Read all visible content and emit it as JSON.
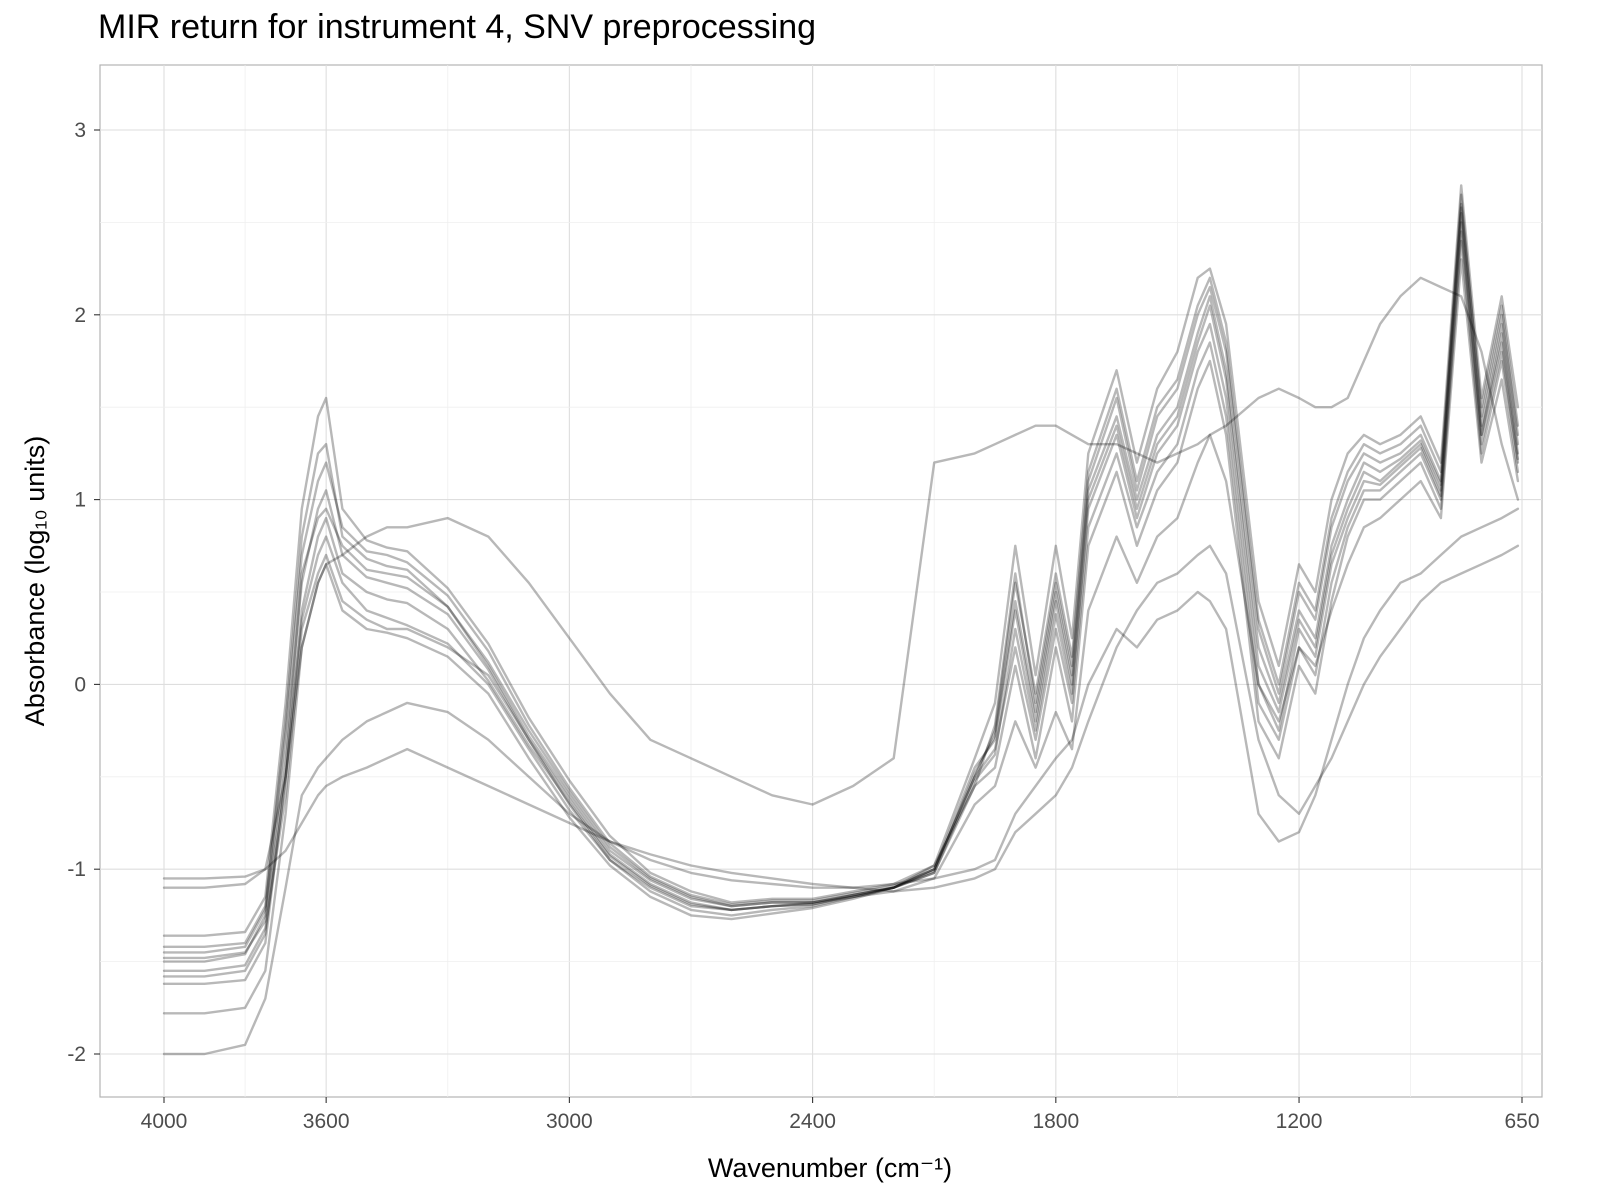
{
  "chart_data": {
    "type": "line",
    "title": "MIR return for instrument 4, SNV preprocessing",
    "xlabel": "Wavenumber (cm⁻¹)",
    "ylabel": "Absorbance (log₁₀ units)",
    "xlim": [
      4000,
      650
    ],
    "ylim": [
      -2.0,
      3.0
    ],
    "x_reversed": true,
    "x_ticks": [
      4000,
      3600,
      3000,
      2400,
      1800,
      1200,
      650
    ],
    "y_ticks": [
      -2,
      -1,
      0,
      1,
      2,
      3
    ],
    "grid": true,
    "legend": "none",
    "line_color": "#000000",
    "line_opacity": 0.28,
    "x": [
      4000,
      3900,
      3800,
      3750,
      3700,
      3660,
      3620,
      3600,
      3560,
      3500,
      3450,
      3400,
      3300,
      3200,
      3100,
      3000,
      2900,
      2800,
      2700,
      2600,
      2500,
      2400,
      2300,
      2200,
      2100,
      2000,
      1950,
      1900,
      1850,
      1800,
      1760,
      1720,
      1650,
      1600,
      1550,
      1500,
      1450,
      1420,
      1380,
      1300,
      1250,
      1200,
      1160,
      1120,
      1080,
      1040,
      1000,
      950,
      900,
      850,
      800,
      750,
      700,
      660
    ],
    "series": [
      {
        "values": [
          -1.42,
          -1.42,
          -1.4,
          -1.2,
          -0.2,
          0.8,
          1.25,
          1.3,
          0.8,
          0.68,
          0.64,
          0.62,
          0.42,
          0.12,
          -0.25,
          -0.58,
          -0.88,
          -1.05,
          -1.15,
          -1.2,
          -1.18,
          -1.18,
          -1.14,
          -1.1,
          -1.02,
          -0.55,
          -0.22,
          0.6,
          -0.1,
          0.55,
          0.1,
          1.1,
          1.55,
          1.05,
          1.45,
          1.6,
          2.0,
          2.15,
          1.8,
          0.3,
          -0.05,
          0.5,
          0.35,
          0.85,
          1.1,
          1.25,
          1.2,
          1.25,
          1.35,
          1.1,
          2.65,
          1.45,
          2.0,
          1.35
        ]
      },
      {
        "values": [
          -1.5,
          -1.5,
          -1.46,
          -1.25,
          -0.35,
          0.55,
          0.95,
          1.05,
          0.7,
          0.58,
          0.55,
          0.52,
          0.38,
          0.08,
          -0.3,
          -0.62,
          -0.92,
          -1.08,
          -1.18,
          -1.22,
          -1.2,
          -1.19,
          -1.15,
          -1.1,
          -1.0,
          -0.45,
          -0.3,
          0.4,
          -0.2,
          0.45,
          0.0,
          1.0,
          1.4,
          0.95,
          1.3,
          1.45,
          1.85,
          2.05,
          1.65,
          0.1,
          -0.15,
          0.35,
          0.2,
          0.7,
          0.95,
          1.15,
          1.1,
          1.2,
          1.3,
          1.05,
          2.55,
          1.35,
          1.9,
          1.25
        ]
      },
      {
        "values": [
          -1.36,
          -1.36,
          -1.34,
          -1.15,
          -0.1,
          0.95,
          1.45,
          1.55,
          0.95,
          0.78,
          0.74,
          0.72,
          0.52,
          0.22,
          -0.18,
          -0.52,
          -0.82,
          -1.02,
          -1.12,
          -1.18,
          -1.16,
          -1.16,
          -1.12,
          -1.08,
          -0.98,
          -0.4,
          -0.1,
          0.75,
          0.05,
          0.75,
          0.25,
          1.25,
          1.7,
          1.2,
          1.6,
          1.8,
          2.2,
          2.25,
          1.95,
          0.45,
          0.1,
          0.65,
          0.5,
          1.0,
          1.25,
          1.35,
          1.3,
          1.35,
          1.45,
          1.2,
          2.7,
          1.55,
          2.1,
          1.5
        ]
      },
      {
        "values": [
          -1.58,
          -1.58,
          -1.55,
          -1.35,
          -0.5,
          0.35,
          0.7,
          0.8,
          0.55,
          0.4,
          0.36,
          0.32,
          0.22,
          0.0,
          -0.35,
          -0.68,
          -0.95,
          -1.12,
          -1.22,
          -1.25,
          -1.22,
          -1.2,
          -1.15,
          -1.1,
          -1.0,
          -0.5,
          -0.35,
          0.2,
          -0.3,
          0.3,
          -0.1,
          0.85,
          1.25,
          0.85,
          1.15,
          1.3,
          1.7,
          1.85,
          1.45,
          -0.1,
          -0.3,
          0.2,
          0.05,
          0.55,
          0.85,
          1.05,
          1.05,
          1.15,
          1.25,
          1.0,
          2.45,
          1.3,
          1.8,
          1.2
        ]
      },
      {
        "values": [
          -1.78,
          -1.78,
          -1.75,
          -1.55,
          -0.7,
          0.2,
          0.55,
          0.65,
          0.4,
          0.3,
          0.28,
          0.25,
          0.15,
          -0.05,
          -0.4,
          -0.72,
          -0.98,
          -1.15,
          -1.25,
          -1.27,
          -1.24,
          -1.21,
          -1.16,
          -1.1,
          -0.98,
          -0.55,
          -0.45,
          0.1,
          -0.4,
          0.2,
          -0.2,
          0.75,
          1.15,
          0.75,
          1.05,
          1.2,
          1.6,
          1.75,
          1.35,
          -0.2,
          -0.4,
          0.1,
          -0.05,
          0.45,
          0.8,
          1.0,
          1.0,
          1.1,
          1.2,
          0.95,
          2.4,
          1.25,
          1.75,
          1.15
        ]
      },
      {
        "values": [
          -1.45,
          -1.45,
          -1.42,
          -1.22,
          -0.25,
          0.7,
          1.1,
          1.2,
          0.85,
          0.72,
          0.7,
          0.66,
          0.48,
          0.18,
          -0.22,
          -0.56,
          -0.86,
          -1.04,
          -1.14,
          -1.19,
          -1.17,
          -1.17,
          -1.13,
          -1.09,
          -1.0,
          -0.5,
          -0.25,
          0.55,
          -0.05,
          0.6,
          0.15,
          1.15,
          1.6,
          1.1,
          1.5,
          1.65,
          2.05,
          2.2,
          1.85,
          0.35,
          0.0,
          0.55,
          0.4,
          0.9,
          1.15,
          1.3,
          1.25,
          1.3,
          1.4,
          1.15,
          2.6,
          1.5,
          2.05,
          1.4
        ]
      },
      {
        "values": [
          -1.48,
          -1.48,
          -1.45,
          -1.28,
          -0.45,
          0.6,
          0.9,
          0.95,
          0.75,
          0.62,
          0.6,
          0.58,
          0.42,
          0.1,
          -0.28,
          -0.6,
          -0.9,
          -1.06,
          -1.16,
          -1.2,
          -1.18,
          -1.18,
          -1.14,
          -1.1,
          -1.01,
          -0.48,
          -0.28,
          0.45,
          -0.15,
          0.5,
          0.05,
          1.05,
          1.45,
          1.0,
          1.35,
          1.5,
          1.9,
          2.1,
          1.7,
          0.2,
          -0.1,
          0.4,
          0.25,
          0.75,
          1.0,
          1.2,
          1.15,
          1.22,
          1.32,
          1.08,
          2.58,
          1.4,
          1.95,
          1.3
        ]
      },
      {
        "values": [
          -1.05,
          -1.05,
          -1.04,
          -1.0,
          -0.9,
          -0.75,
          -0.6,
          -0.55,
          -0.5,
          -0.45,
          -0.4,
          -0.35,
          -0.45,
          -0.55,
          -0.65,
          -0.75,
          -0.85,
          -0.92,
          -0.98,
          -1.02,
          -1.05,
          -1.08,
          -1.1,
          -1.12,
          -1.1,
          -1.05,
          -1.0,
          -0.8,
          -0.7,
          -0.6,
          -0.45,
          -0.2,
          0.2,
          0.4,
          0.55,
          0.6,
          0.7,
          0.75,
          0.6,
          -0.3,
          -0.6,
          -0.7,
          -0.55,
          -0.4,
          -0.2,
          0.0,
          0.15,
          0.3,
          0.45,
          0.55,
          0.6,
          0.65,
          0.7,
          0.75
        ]
      },
      {
        "values": [
          -2.0,
          -2.0,
          -1.95,
          -1.7,
          -1.1,
          -0.6,
          -0.45,
          -0.4,
          -0.3,
          -0.2,
          -0.15,
          -0.1,
          -0.15,
          -0.3,
          -0.5,
          -0.7,
          -0.85,
          -0.95,
          -1.02,
          -1.06,
          -1.08,
          -1.1,
          -1.1,
          -1.08,
          -1.05,
          -1.0,
          -0.95,
          -0.7,
          -0.55,
          -0.4,
          -0.3,
          0.0,
          0.3,
          0.2,
          0.35,
          0.4,
          0.5,
          0.45,
          0.3,
          -0.7,
          -0.85,
          -0.8,
          -0.6,
          -0.3,
          0.0,
          0.25,
          0.4,
          0.55,
          0.6,
          0.7,
          0.8,
          0.85,
          0.9,
          0.95
        ]
      },
      {
        "values": [
          -1.1,
          -1.1,
          -1.08,
          -1.0,
          -0.5,
          0.2,
          0.55,
          0.65,
          0.7,
          0.8,
          0.85,
          0.85,
          0.9,
          0.8,
          0.55,
          0.25,
          -0.05,
          -0.3,
          -0.4,
          -0.5,
          -0.6,
          -0.65,
          -0.55,
          -0.4,
          1.2,
          1.25,
          1.3,
          1.35,
          1.4,
          1.4,
          1.35,
          1.3,
          1.3,
          1.25,
          1.2,
          1.25,
          1.3,
          1.35,
          1.4,
          1.55,
          1.6,
          1.55,
          1.5,
          1.5,
          1.55,
          1.75,
          1.95,
          2.1,
          2.2,
          2.15,
          2.1,
          1.8,
          1.3,
          1.0
        ]
      },
      {
        "values": [
          -1.55,
          -1.55,
          -1.52,
          -1.32,
          -0.6,
          0.3,
          0.6,
          0.7,
          0.45,
          0.35,
          0.3,
          0.3,
          0.2,
          0.05,
          -0.3,
          -0.65,
          -0.95,
          -1.1,
          -1.2,
          -1.22,
          -1.2,
          -1.18,
          -1.15,
          -1.12,
          -1.05,
          -0.65,
          -0.55,
          -0.2,
          -0.45,
          -0.15,
          -0.35,
          0.4,
          0.8,
          0.55,
          0.8,
          0.9,
          1.2,
          1.35,
          1.1,
          0.0,
          -0.2,
          0.2,
          0.1,
          0.4,
          0.65,
          0.85,
          0.9,
          1.0,
          1.1,
          0.9,
          2.3,
          1.2,
          1.65,
          1.1
        ]
      },
      {
        "values": [
          -1.62,
          -1.62,
          -1.6,
          -1.4,
          -0.5,
          0.4,
          0.8,
          0.9,
          0.6,
          0.5,
          0.46,
          0.44,
          0.3,
          0.02,
          -0.33,
          -0.64,
          -0.93,
          -1.09,
          -1.19,
          -1.22,
          -1.2,
          -1.19,
          -1.14,
          -1.1,
          -1.02,
          -0.52,
          -0.38,
          0.3,
          -0.25,
          0.38,
          -0.05,
          0.95,
          1.35,
          0.9,
          1.25,
          1.4,
          1.8,
          1.95,
          1.55,
          0.0,
          -0.25,
          0.3,
          0.15,
          0.65,
          0.9,
          1.1,
          1.08,
          1.18,
          1.28,
          1.02,
          2.5,
          1.35,
          1.85,
          1.22
        ]
      }
    ]
  }
}
